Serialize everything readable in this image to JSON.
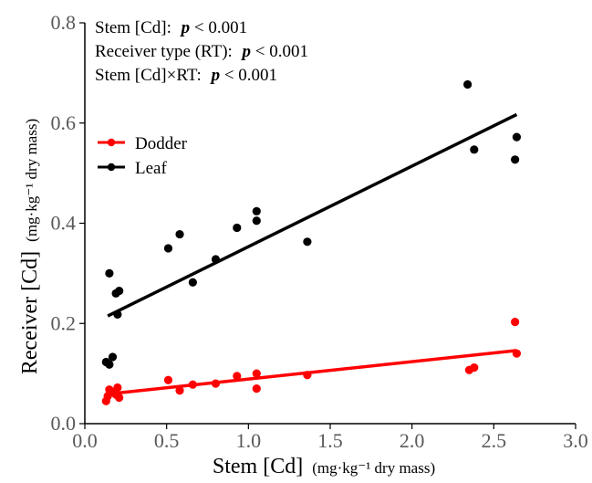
{
  "chart_data": {
    "type": "scatter",
    "xlabel": "Stem [Cd]",
    "xlabel_unit": "(mg·kg⁻¹ dry mass)",
    "ylabel": "Receiver [Cd]",
    "ylabel_unit": "(mg·kg⁻¹ dry mass)",
    "xlim": [
      0,
      3.0
    ],
    "ylim": [
      0,
      0.8
    ],
    "x_ticks": [
      "0.0",
      "0.5",
      "1.0",
      "1.5",
      "2.0",
      "2.5",
      "3.0"
    ],
    "y_ticks": [
      "0.0",
      "0.2",
      "0.4",
      "0.6",
      "0.8"
    ],
    "grid": false,
    "legend_position": "top-left",
    "annotations": [
      {
        "label": "Stem [Cd]:",
        "p_text": "p",
        "value": " < 0.001"
      },
      {
        "label": "Receiver type (RT):",
        "p_text": "p",
        "value": " < 0.001"
      },
      {
        "label": "Stem [Cd]×RT:",
        "p_text": "p",
        "value": " < 0.001"
      }
    ],
    "series": [
      {
        "name": "Dodder",
        "color": "#ff0000",
        "points": [
          [
            0.13,
            0.045
          ],
          [
            0.14,
            0.055
          ],
          [
            0.15,
            0.068
          ],
          [
            0.17,
            0.063
          ],
          [
            0.19,
            0.058
          ],
          [
            0.2,
            0.072
          ],
          [
            0.21,
            0.052
          ],
          [
            0.51,
            0.087
          ],
          [
            0.58,
            0.066
          ],
          [
            0.66,
            0.078
          ],
          [
            0.8,
            0.08
          ],
          [
            0.93,
            0.095
          ],
          [
            1.05,
            0.07
          ],
          [
            1.05,
            0.1
          ],
          [
            1.36,
            0.097
          ],
          [
            2.35,
            0.107
          ],
          [
            2.38,
            0.112
          ],
          [
            2.63,
            0.203
          ],
          [
            2.64,
            0.14
          ]
        ],
        "fit": {
          "x": [
            0.14,
            2.64
          ],
          "y": [
            0.059,
            0.146
          ]
        }
      },
      {
        "name": "Leaf",
        "color": "#000000",
        "points": [
          [
            0.13,
            0.123
          ],
          [
            0.15,
            0.118
          ],
          [
            0.15,
            0.3
          ],
          [
            0.17,
            0.133
          ],
          [
            0.19,
            0.26
          ],
          [
            0.2,
            0.218
          ],
          [
            0.21,
            0.265
          ],
          [
            0.51,
            0.35
          ],
          [
            0.58,
            0.378
          ],
          [
            0.66,
            0.282
          ],
          [
            0.8,
            0.328
          ],
          [
            0.93,
            0.391
          ],
          [
            1.05,
            0.424
          ],
          [
            1.05,
            0.405
          ],
          [
            1.36,
            0.363
          ],
          [
            2.34,
            0.677
          ],
          [
            2.38,
            0.547
          ],
          [
            2.63,
            0.527
          ],
          [
            2.64,
            0.572
          ]
        ],
        "fit": {
          "x": [
            0.14,
            2.64
          ],
          "y": [
            0.215,
            0.617
          ]
        }
      }
    ]
  }
}
